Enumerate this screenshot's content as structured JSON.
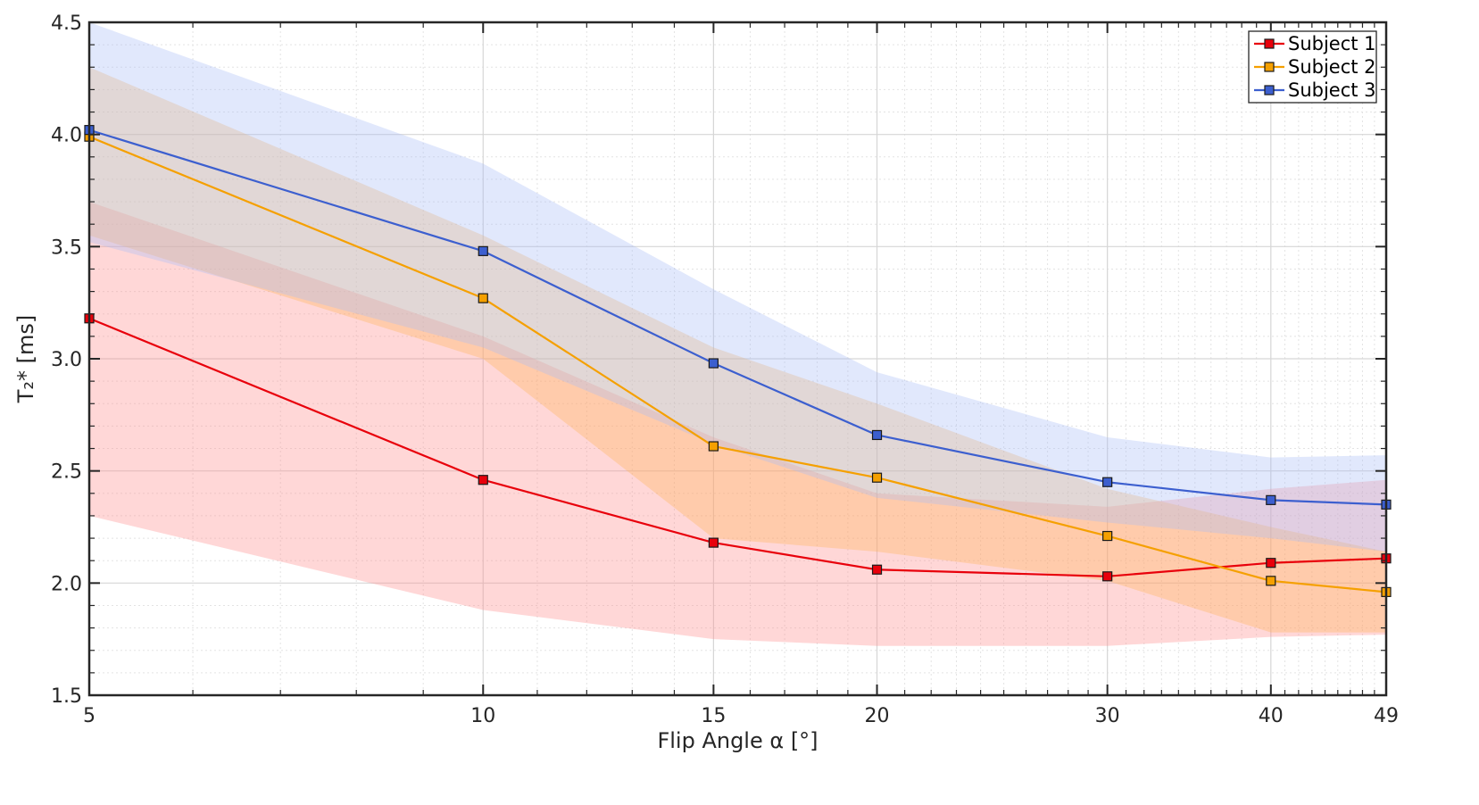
{
  "chart_data": {
    "type": "line",
    "title": "",
    "xlabel": "Flip Angle α [°]",
    "ylabel": "T₂* [ms]",
    "x": [
      5,
      10,
      15,
      20,
      30,
      40,
      49
    ],
    "x_tick_labels": [
      "5",
      "10",
      "15",
      "20",
      "30",
      "40",
      "49"
    ],
    "x_scale": "log",
    "xlim": [
      5,
      49
    ],
    "ylim": [
      1.5,
      4.5
    ],
    "y_ticks": [
      1.5,
      2.0,
      2.5,
      3.0,
      3.5,
      4.0,
      4.5
    ],
    "y_tick_labels": [
      "1.5",
      "2.0",
      "2.5",
      "3.0",
      "3.5",
      "4.0",
      "4.5"
    ],
    "grid": true,
    "legend_position": "top-right",
    "series": [
      {
        "name": "Subject 1",
        "color": "#e8000b",
        "band_color": "#ff8c8c",
        "values": [
          3.18,
          2.46,
          2.18,
          2.06,
          2.03,
          2.09,
          2.11
        ],
        "lower": [
          2.3,
          1.88,
          1.75,
          1.72,
          1.72,
          1.76,
          1.77
        ],
        "upper": [
          3.7,
          3.1,
          2.65,
          2.4,
          2.34,
          2.42,
          2.46
        ]
      },
      {
        "name": "Subject 2",
        "color": "#f5a000",
        "band_color": "#ffb45a",
        "values": [
          3.99,
          3.27,
          2.61,
          2.47,
          2.21,
          2.01,
          1.96
        ],
        "lower": [
          3.55,
          3.0,
          2.2,
          2.14,
          2.01,
          1.78,
          1.78
        ],
        "upper": [
          4.3,
          3.55,
          3.05,
          2.8,
          2.42,
          2.25,
          2.14
        ]
      },
      {
        "name": "Subject 3",
        "color": "#3c5fcf",
        "band_color": "#aabdf5",
        "values": [
          4.02,
          3.48,
          2.98,
          2.66,
          2.45,
          2.37,
          2.35
        ],
        "lower": [
          3.52,
          3.05,
          2.62,
          2.38,
          2.27,
          2.2,
          2.14
        ],
        "upper": [
          4.5,
          3.87,
          3.31,
          2.94,
          2.65,
          2.56,
          2.57
        ]
      }
    ]
  }
}
